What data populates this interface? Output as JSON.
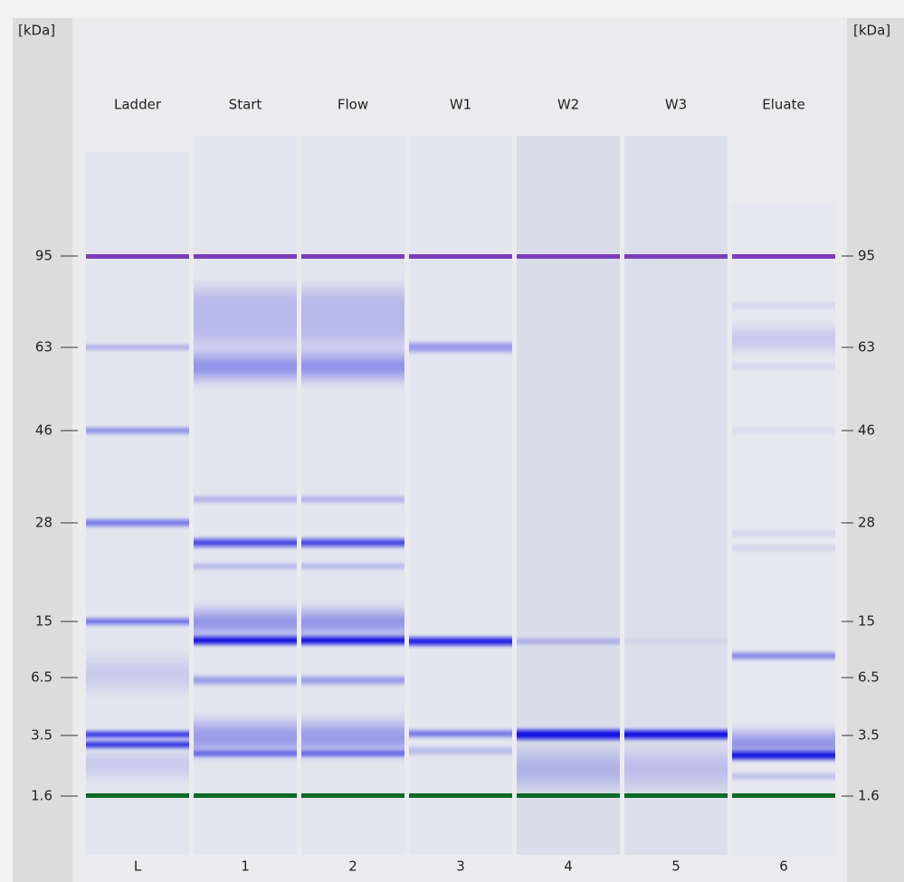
{
  "axis": {
    "left_unit": "[kDa]",
    "right_unit": "[kDa]",
    "ticks": [
      "95",
      "63",
      "46",
      "28",
      "15",
      "6.5",
      "3.5",
      "1.6"
    ]
  },
  "lanes": [
    {
      "name": "Ladder",
      "number": "L"
    },
    {
      "name": "Start",
      "number": "1"
    },
    {
      "name": "Flow",
      "number": "2"
    },
    {
      "name": "W1",
      "number": "3"
    },
    {
      "name": "W2",
      "number": "4"
    },
    {
      "name": "W3",
      "number": "5"
    },
    {
      "name": "Eluate",
      "number": "6"
    }
  ]
}
